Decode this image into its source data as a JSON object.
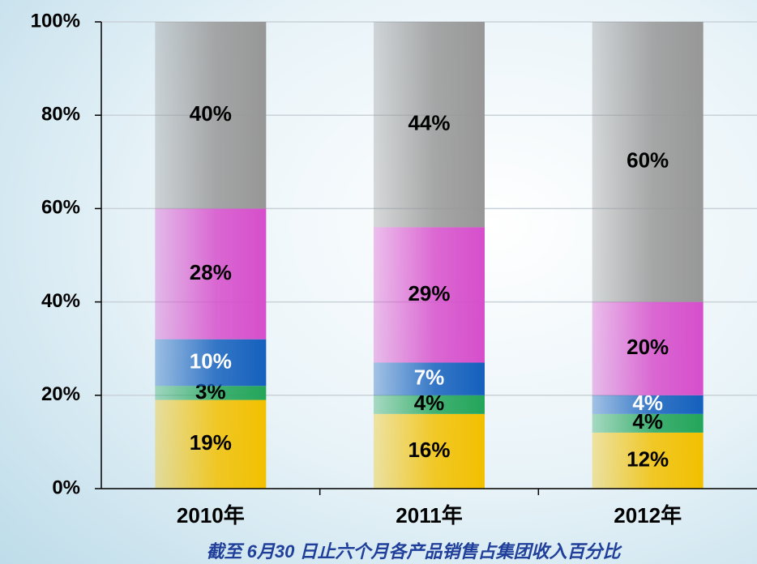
{
  "chart_data": {
    "type": "stacked_bar",
    "caption": "截至 6月30 日止六个月各产品销售占集团收入百分比",
    "categories": [
      "2010年",
      "2011年",
      "2012年"
    ],
    "series": [
      {
        "color": "#f2c000",
        "values": [
          19,
          16,
          12
        ],
        "value_labels": [
          "19%",
          "16%",
          "12%"
        ],
        "label_color": "#000000"
      },
      {
        "color": "#23a55a",
        "values": [
          3,
          4,
          4
        ],
        "value_labels": [
          "3%",
          "4%",
          "4%"
        ],
        "label_color": "#000000"
      },
      {
        "color": "#1460bd",
        "values": [
          10,
          7,
          4
        ],
        "value_labels": [
          "10%",
          "7%",
          "4%"
        ],
        "label_color": "#ffffff"
      },
      {
        "color": "#d64ecb",
        "values": [
          28,
          29,
          20
        ],
        "value_labels": [
          "28%",
          "29%",
          "20%"
        ],
        "label_color": "#000000"
      },
      {
        "color": "#979797",
        "values": [
          40,
          44,
          60
        ],
        "value_labels": [
          "40%",
          "44%",
          "60%"
        ],
        "label_color": "#000000"
      }
    ],
    "ylim": [
      0,
      100
    ],
    "yticks": [
      {
        "value": 0,
        "label": "0%"
      },
      {
        "value": 20,
        "label": "20%"
      },
      {
        "value": 40,
        "label": "40%"
      },
      {
        "value": 60,
        "label": "60%"
      },
      {
        "value": 80,
        "label": "80%"
      },
      {
        "value": 100,
        "label": "100%"
      }
    ],
    "grid": true
  }
}
